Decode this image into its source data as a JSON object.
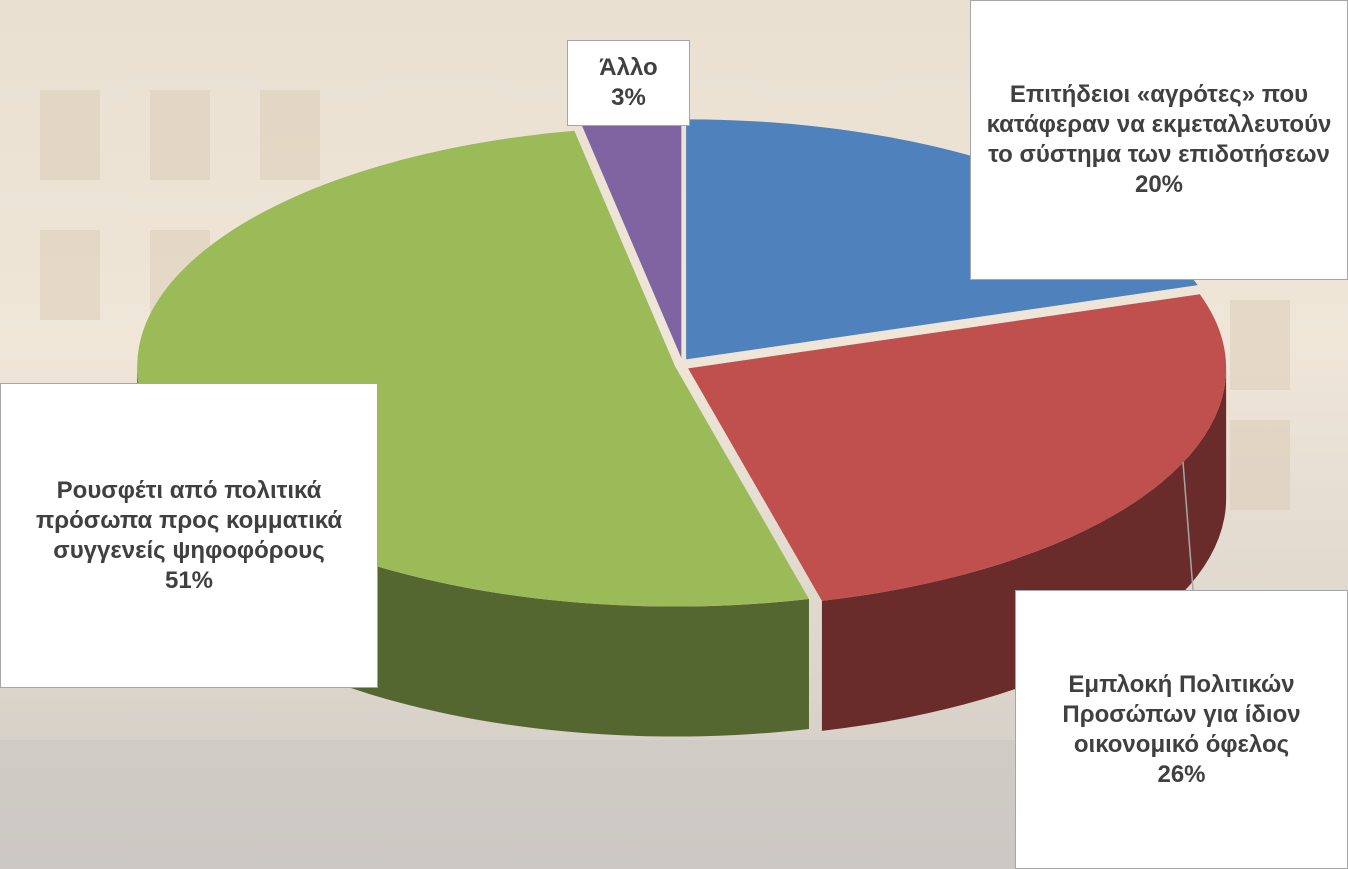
{
  "chart_data": {
    "type": "pie3d",
    "categories": [
      "Επιτήδειοι «αγρότες» που κατάφεραν να εκμεταλλευτούν το σύστημα των επιδοτήσεων",
      "Εμπλοκή Πολιτικών Προσώπων για ίδιον οικονομικό όφελος",
      "Ρουσφέτι από πολιτικά πρόσωπα προς κομματικά συγγενείς ψηφοφόρους",
      "Άλλο"
    ],
    "values": [
      20,
      26,
      51,
      3
    ],
    "value_labels": [
      "20%",
      "26%",
      "51%",
      "3%"
    ],
    "colors": [
      "#4f81bd",
      "#c0504d",
      "#9bbb59",
      "#8064a2"
    ]
  }
}
